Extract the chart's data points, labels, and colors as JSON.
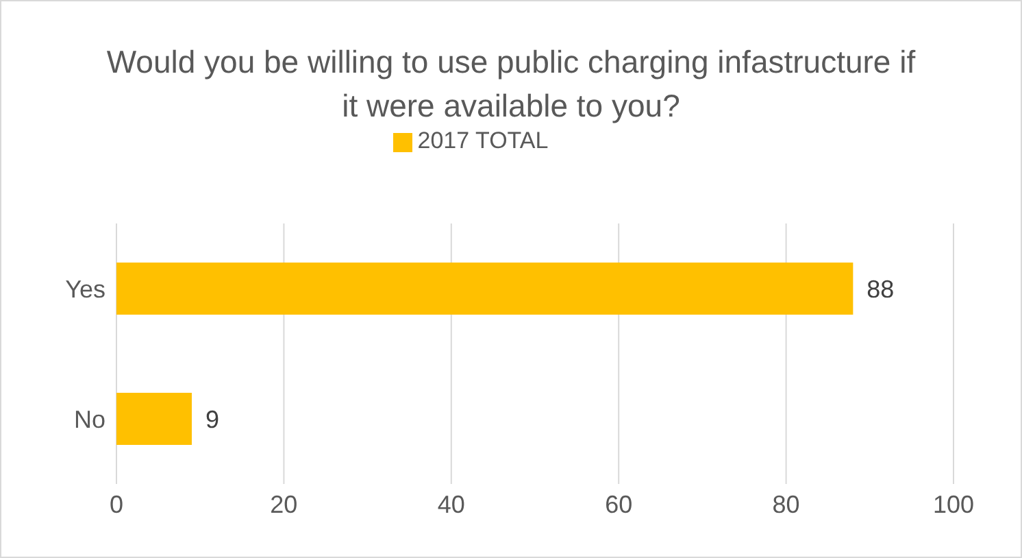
{
  "chart_data": {
    "type": "bar",
    "orientation": "horizontal",
    "title": "Would you be willing to use public charging infastructure if it were available to you?",
    "categories": [
      "Yes",
      "No"
    ],
    "series": [
      {
        "name": "2017 TOTAL",
        "color": "#ffc000",
        "values": [
          88,
          9
        ]
      }
    ],
    "xlim": [
      0,
      100
    ],
    "xticks": [
      0,
      20,
      40,
      60,
      80,
      100
    ],
    "grid": "x",
    "legend": "top",
    "data_labels": true
  }
}
